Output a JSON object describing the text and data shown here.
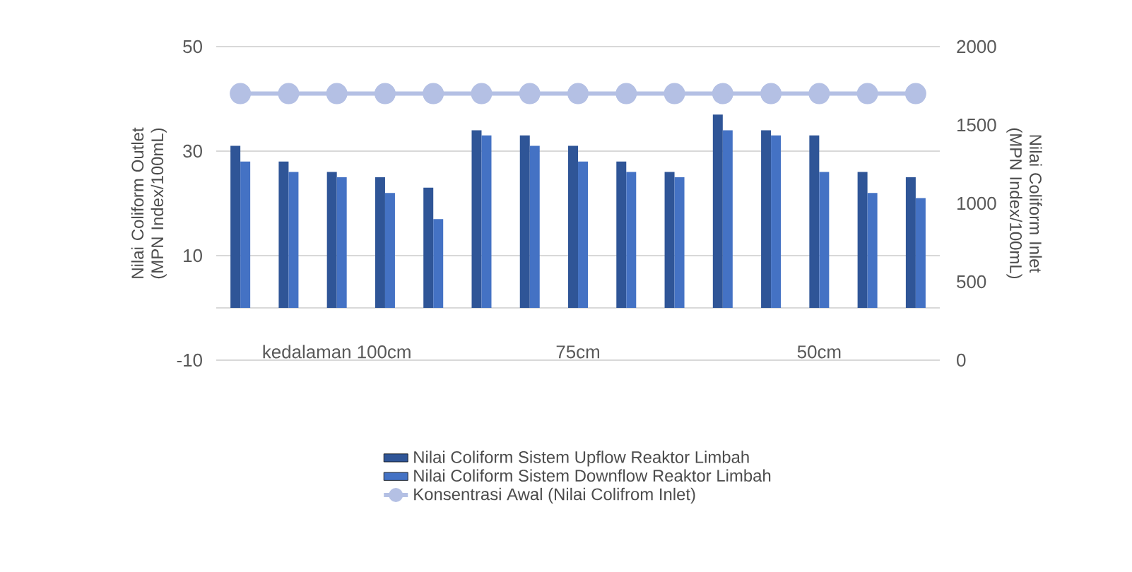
{
  "chart_data": {
    "type": "bar",
    "ylabel": "Nilai Coliform Outlet (MPN Index/100mL)",
    "y2label": "Nilai Coliform Inlet (MPN Index/100mL)",
    "categories": [
      null,
      null,
      "kedalaman 100cm",
      null,
      null,
      null,
      null,
      "75cm",
      null,
      null,
      null,
      null,
      "50cm",
      null,
      null
    ],
    "series": [
      {
        "name": "Nilai Coliform Sistem Upflow Reaktor Limbah",
        "color": "#2f5597",
        "values": [
          31,
          28,
          26,
          25,
          23,
          34,
          33,
          31,
          28,
          26,
          37,
          34,
          33,
          26,
          25
        ]
      },
      {
        "name": "Nilai Coliform Sistem Downflow Reaktor Limbah",
        "color": "#4472c4",
        "values": [
          28,
          26,
          25,
          22,
          17,
          33,
          31,
          28,
          26,
          25,
          34,
          33,
          26,
          22,
          21
        ]
      },
      {
        "name": "Konsentrasi Awal (Nilai Colifrom Inlet)",
        "color": "#b4c0e4",
        "type": "line",
        "axis": "y2",
        "marker": "circle",
        "values": [
          1700,
          1700,
          1700,
          1700,
          1700,
          1700,
          1700,
          1700,
          1700,
          1700,
          1700,
          1700,
          1700,
          1700,
          1700
        ]
      }
    ],
    "ylim": [
      -10,
      50
    ],
    "yticks": [
      -10,
      10,
      30,
      50
    ],
    "y2lim": [
      0,
      2000
    ],
    "y2ticks": [
      0,
      500,
      1000,
      1500,
      2000
    ],
    "grid": "y",
    "legend": "bottom"
  }
}
